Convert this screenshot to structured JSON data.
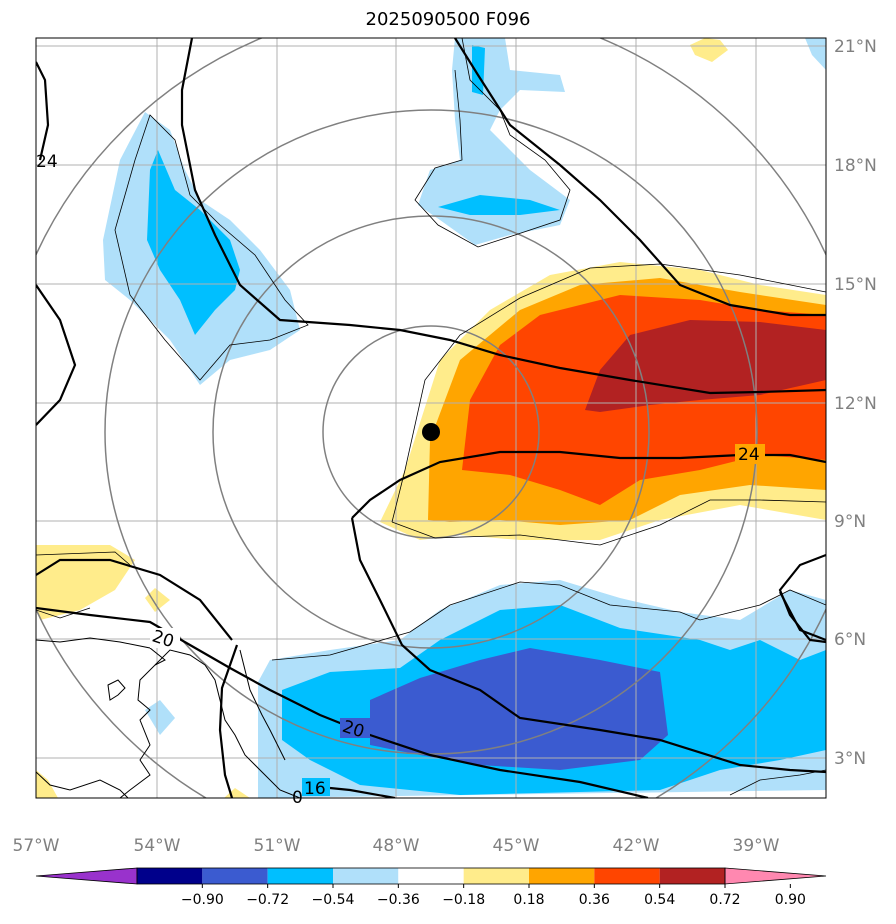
{
  "title": "2025090500 F096",
  "map": {
    "lon_range": [
      -57,
      -37.5
    ],
    "lat_range": [
      1.5,
      21.2
    ],
    "lon_ticks": [
      "57°W",
      "54°W",
      "51°W",
      "48°W",
      "45°W",
      "42°W",
      "39°W"
    ],
    "lat_ticks": [
      "3°N",
      "6°N",
      "9°N",
      "12°N",
      "15°N",
      "18°N",
      "21°N"
    ],
    "grid": true,
    "storm_center": {
      "lon": -47.0,
      "lat": 11.2
    },
    "contour_labels": [
      "24",
      "24",
      "20",
      "20",
      "16",
      "0"
    ]
  },
  "colorbar": {
    "ticks": [
      "−0.90",
      "−0.72",
      "−0.54",
      "−0.36",
      "−0.18",
      "0.18",
      "0.36",
      "0.54",
      "0.72",
      "0.90"
    ],
    "colors": [
      "#9932cc",
      "#00008b",
      "#3b5bd0",
      "#00bfff",
      "#b0e0fa",
      "#ffffff",
      "#ffec8b",
      "#ffa500",
      "#ff4500",
      "#b22222",
      "#ff88b0"
    ]
  },
  "chart_data": {
    "type": "heatmap",
    "title": "2025090500 F096",
    "fields": {
      "shading": "anomaly field with levels -0.90 to 0.90",
      "contours": [
        16,
        20,
        24
      ]
    }
  }
}
